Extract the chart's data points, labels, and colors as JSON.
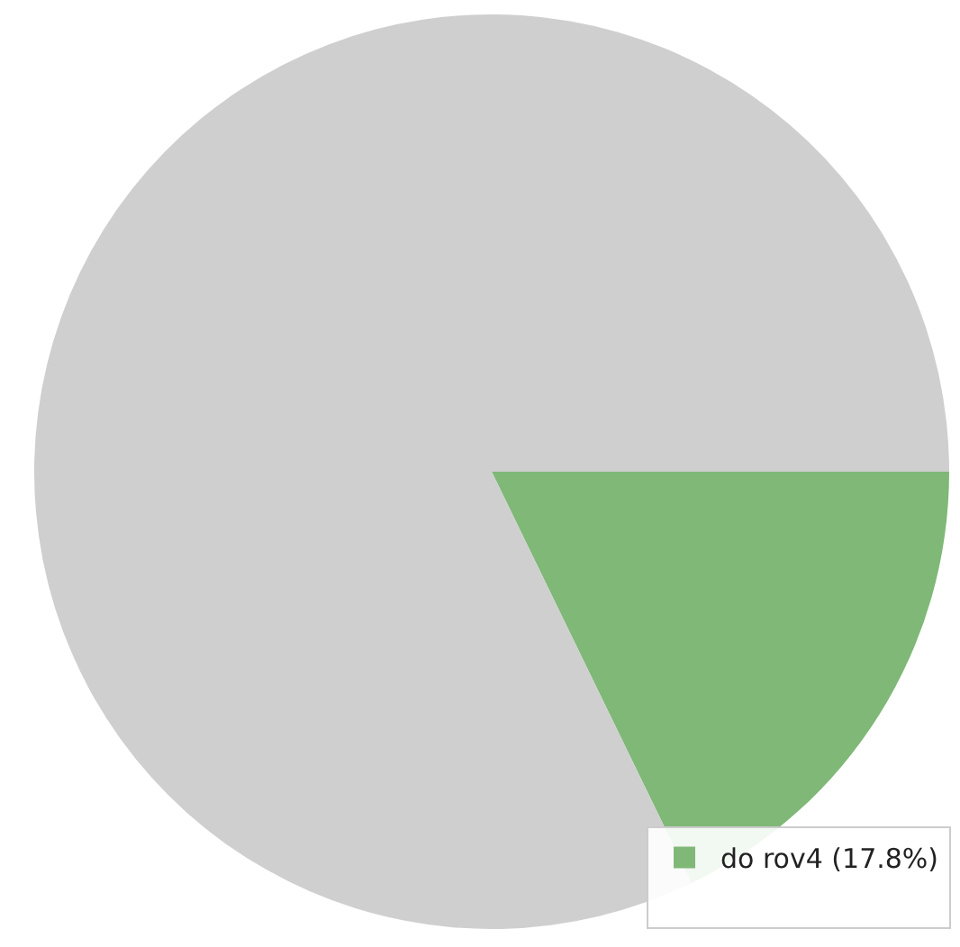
{
  "chart_data": {
    "type": "pie",
    "categories": [
      "do rov4 (17.8%)",
      null
    ],
    "values": [
      17.8,
      82.2
    ],
    "colors": [
      "#7fb877",
      "#cfcfcf"
    ],
    "legend": "bottom right"
  }
}
